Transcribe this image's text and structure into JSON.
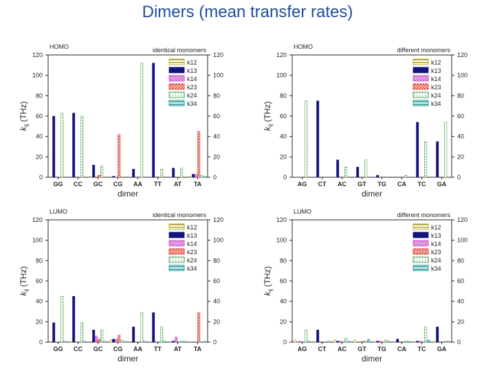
{
  "slide": {
    "title": "Dimers (mean transfer rates)"
  },
  "colors": {
    "k12": "#a89a10",
    "k13": "#13137a",
    "k14": "#c040c0",
    "k23": "#d23020",
    "k24": "#2e8b2e",
    "k34": "#138a8a"
  },
  "chart_data": [
    {
      "type": "bar",
      "corner_label": "HOMO",
      "subtitle": "identical monomers",
      "xlabel": "dimer",
      "ylabel_main": "k",
      "ylabel_sub": "ij",
      "ylabel_unit": " (THz)",
      "ylim": [
        0,
        120
      ],
      "yticks": [
        "0",
        "20",
        "40",
        "60",
        "80",
        "100",
        "120"
      ],
      "categories": [
        "GG",
        "CC",
        "GC",
        "CG",
        "AA",
        "TT",
        "AT",
        "TA"
      ],
      "series": [
        {
          "name": "k12",
          "values": [
            0,
            0,
            1,
            0,
            0,
            0,
            0,
            1
          ]
        },
        {
          "name": "k13",
          "values": [
            60,
            63,
            12,
            1,
            8,
            112,
            9,
            3
          ]
        },
        {
          "name": "k14",
          "values": [
            0,
            0,
            0,
            0,
            0,
            0,
            0,
            3
          ]
        },
        {
          "name": "k23",
          "values": [
            0,
            0,
            2,
            42,
            0,
            0,
            0,
            45
          ]
        },
        {
          "name": "k24",
          "values": [
            63,
            60,
            11,
            0,
            112,
            8,
            9,
            2
          ]
        },
        {
          "name": "k34",
          "values": [
            0,
            0,
            0,
            0,
            0,
            0,
            0,
            1
          ]
        }
      ]
    },
    {
      "type": "bar",
      "corner_label": "HOMO",
      "subtitle": "different monomers",
      "xlabel": "dimer",
      "ylabel_main": "k",
      "ylabel_sub": "ij",
      "ylabel_unit": " (THz)",
      "ylim": [
        0,
        120
      ],
      "yticks": [
        "0",
        "20",
        "40",
        "60",
        "80",
        "100",
        "120"
      ],
      "categories": [
        "AG",
        "CT",
        "AC",
        "GT",
        "TG",
        "CA",
        "TC",
        "GA"
      ],
      "series": [
        {
          "name": "k12",
          "values": [
            0,
            0,
            0,
            0,
            0,
            0,
            0,
            0
          ]
        },
        {
          "name": "k13",
          "values": [
            0,
            75,
            17,
            10,
            2,
            0,
            54,
            35
          ]
        },
        {
          "name": "k14",
          "values": [
            0,
            0,
            0,
            0,
            0,
            0,
            0,
            0
          ]
        },
        {
          "name": "k23",
          "values": [
            0,
            0,
            0,
            0,
            0,
            0,
            0,
            0
          ]
        },
        {
          "name": "k24",
          "values": [
            75,
            0,
            10,
            17,
            0,
            2,
            35,
            54
          ]
        },
        {
          "name": "k34",
          "values": [
            0,
            0,
            0,
            0,
            0,
            0,
            0,
            0
          ]
        }
      ]
    },
    {
      "type": "bar",
      "corner_label": "LUMO",
      "subtitle": "identical monomers",
      "xlabel": "dimer",
      "ylabel_main": "k",
      "ylabel_sub": "ij",
      "ylabel_unit": " (THz)",
      "ylim": [
        0,
        120
      ],
      "yticks": [
        "0",
        "20",
        "40",
        "60",
        "80",
        "100",
        "120"
      ],
      "categories": [
        "GG",
        "CC",
        "GC",
        "CG",
        "AA",
        "TT",
        "AT",
        "TA"
      ],
      "series": [
        {
          "name": "k12",
          "values": [
            0,
            1,
            0,
            2,
            0,
            0,
            0,
            0
          ]
        },
        {
          "name": "k13",
          "values": [
            19,
            45,
            12,
            3,
            15,
            29,
            1,
            0
          ]
        },
        {
          "name": "k14",
          "values": [
            0,
            0,
            6,
            3,
            0,
            0,
            5,
            0
          ]
        },
        {
          "name": "k23",
          "values": [
            0,
            0,
            3,
            7,
            0,
            0,
            0,
            29
          ]
        },
        {
          "name": "k24",
          "values": [
            45,
            19,
            12,
            2,
            29,
            15,
            1,
            0
          ]
        },
        {
          "name": "k34",
          "values": [
            1,
            1,
            1,
            1,
            1,
            1,
            1,
            1
          ]
        }
      ]
    },
    {
      "type": "bar",
      "corner_label": "LUMO",
      "subtitle": "different monomers",
      "xlabel": "dimer",
      "ylabel_main": "k",
      "ylabel_sub": "ij",
      "ylabel_unit": " (THz)",
      "ylim": [
        0,
        120
      ],
      "yticks": [
        "0",
        "20",
        "40",
        "60",
        "80",
        "100",
        "120"
      ],
      "categories": [
        "AG",
        "CT",
        "AC",
        "GT",
        "TG",
        "CA",
        "TC",
        "GA"
      ],
      "series": [
        {
          "name": "k12",
          "values": [
            2,
            1,
            2,
            2,
            1,
            1,
            1,
            1
          ]
        },
        {
          "name": "k13",
          "values": [
            0,
            12,
            1,
            0,
            1,
            3,
            1,
            15
          ]
        },
        {
          "name": "k14",
          "values": [
            1,
            0,
            1,
            0,
            1,
            0,
            1,
            0
          ]
        },
        {
          "name": "k23",
          "values": [
            0,
            0,
            0,
            1,
            0,
            0,
            0,
            0
          ]
        },
        {
          "name": "k24",
          "values": [
            12,
            0,
            4,
            1,
            2,
            1,
            15,
            1
          ]
        },
        {
          "name": "k34",
          "values": [
            1,
            1,
            1,
            3,
            1,
            1,
            2,
            1
          ]
        }
      ]
    }
  ]
}
